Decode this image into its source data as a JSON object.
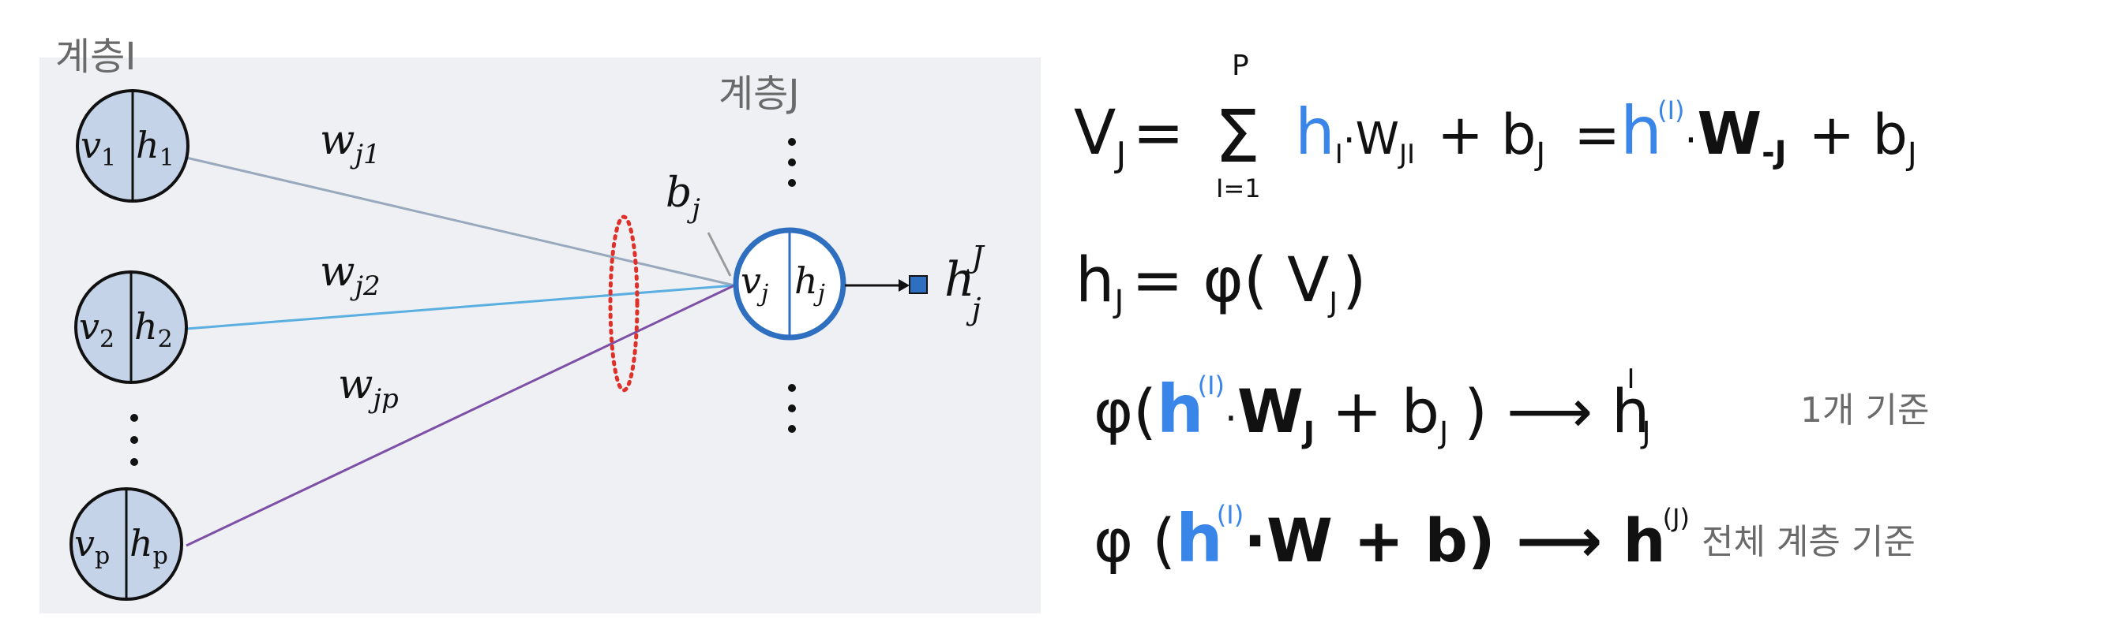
{
  "diagram": {
    "layer_i_label": "계층I",
    "layer_j_label": "계층J",
    "input_nodes": [
      {
        "v": "v",
        "v_sub": "1",
        "h": "h",
        "h_sub": "1"
      },
      {
        "v": "v",
        "v_sub": "2",
        "h": "h",
        "h_sub": "2"
      },
      {
        "v": "v",
        "v_sub": "p",
        "h": "h",
        "h_sub": "p"
      }
    ],
    "output_node": {
      "v": "v",
      "v_sub": "j",
      "h": "h",
      "h_sub": "j"
    },
    "weights": [
      {
        "w": "w",
        "sub": "j1"
      },
      {
        "w": "w",
        "sub": "j2"
      },
      {
        "w": "w",
        "sub": "jp"
      }
    ],
    "bias": {
      "b": "b",
      "sub": "j"
    },
    "output": {
      "h": "h",
      "sub": "j",
      "sup": "J"
    },
    "colors": {
      "line_1": "#98a8bd",
      "line_2": "#5aaee0",
      "line_p": "#7e4fa6",
      "output_node": "#2f6fbf",
      "bias_ellipse": "#e0302a",
      "node_fill": "#c5d3e8",
      "panel": "#eef0f3"
    }
  },
  "notes": {
    "eq1": {
      "lhs": "V",
      "lhs_sub": "J",
      "eq": "=",
      "sigma": "Σ",
      "sum_top": "P",
      "sum_bottom": "I=1",
      "h": "h",
      "sub_i": "I",
      "dot": "·",
      "w": "W",
      "w_sub": "JI",
      "plus_b": "+ b",
      "b_sub": "J",
      "eq2": "=",
      "h2": "h",
      "h2_sup": "(I)",
      "dot2": "·",
      "w2": "W",
      "w2_sub": "-J",
      "plus_b2": "+ b",
      "b2_sub": "J"
    },
    "eq2": {
      "lhs": "h",
      "lhs_sub": "J",
      "rhs": "= φ( V",
      "v_sub": "J",
      "close": ")"
    },
    "eq3": {
      "phi": "φ(",
      "h": "h",
      "h_sup": "(I)",
      "dot": "·",
      "w": "W",
      "w_sub": "J",
      "plus_b": "+ b",
      "b_sub": "J",
      "close_arrow": ") ⟶ h",
      "res_sub": "J",
      "res_sup": "I",
      "note": "1개 기준"
    },
    "eq4": {
      "phi": "φ (",
      "h": "h",
      "h_sup": "(I)",
      "rest": "·W + b) ⟶ h",
      "res_sup": "(J)",
      "note": "전체 계층 기준"
    }
  }
}
